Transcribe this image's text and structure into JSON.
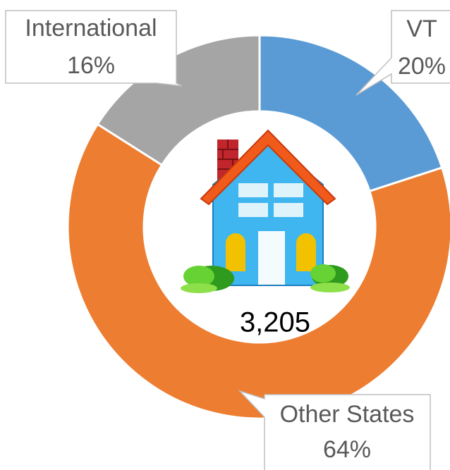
{
  "chart_data": {
    "type": "donut",
    "categories": [
      "VT",
      "Other States",
      "International"
    ],
    "values": [
      20,
      64,
      16
    ],
    "value_labels": [
      "20%",
      "64%",
      "16%"
    ],
    "colors": [
      "#5b9bd5",
      "#ed7d31",
      "#a5a5a5"
    ],
    "center_label": "3,205"
  }
}
